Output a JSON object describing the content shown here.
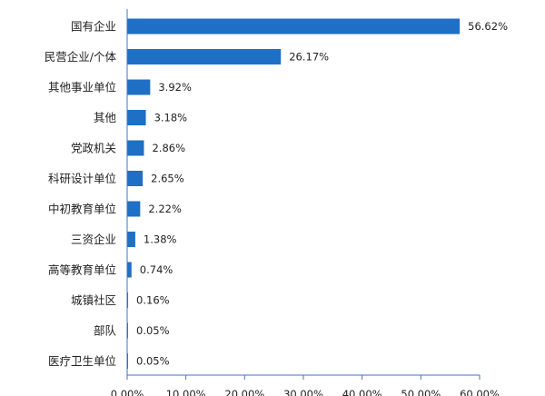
{
  "chart_data": {
    "type": "bar",
    "orientation": "horizontal",
    "categories": [
      "国有企业",
      "民营企业/个体",
      "其他事业单位",
      "其他",
      "党政机关",
      "科研设计单位",
      "中初教育单位",
      "三资企业",
      "高等教育单位",
      "城镇社区",
      "部队",
      "医疗卫生单位"
    ],
    "values": [
      56.62,
      26.17,
      3.92,
      3.18,
      2.86,
      2.65,
      2.22,
      1.38,
      0.74,
      0.16,
      0.05,
      0.05
    ],
    "value_labels": [
      "56.62%",
      "26.17%",
      "3.92%",
      "3.18%",
      "2.86%",
      "2.65%",
      "2.22%",
      "1.38%",
      "0.74%",
      "0.16%",
      "0.05%",
      "0.05%"
    ],
    "xlim": [
      0,
      60
    ],
    "xticks": [
      0,
      10,
      20,
      30,
      40,
      50,
      60
    ],
    "xtick_labels": [
      "0.00%",
      "10.00%",
      "20.00%",
      "30.00%",
      "40.00%",
      "50.00%",
      "60.00%"
    ],
    "bar_color": "#1f6fc5",
    "grid": false,
    "title": "",
    "xlabel": "",
    "ylabel": ""
  }
}
